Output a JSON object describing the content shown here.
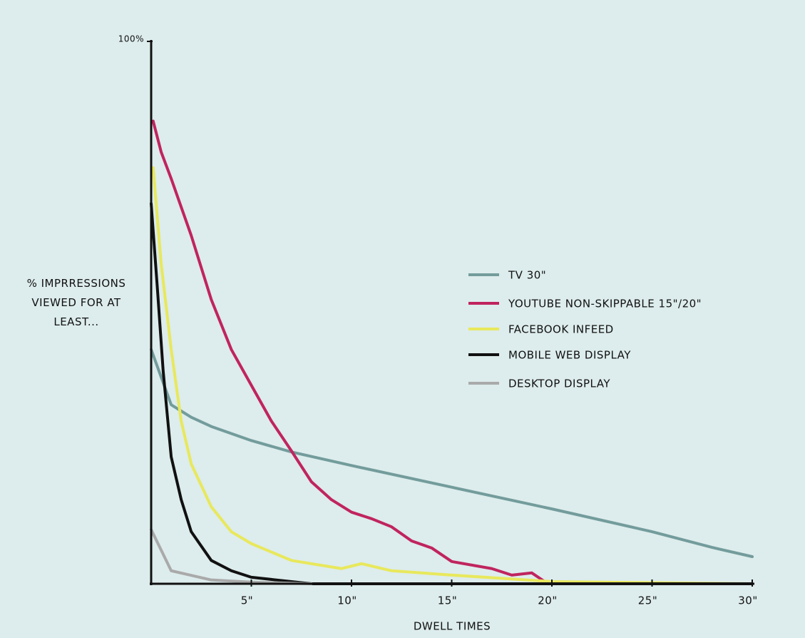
{
  "chart_data": {
    "type": "line",
    "ylabel": "% IMPRRESSIONS VIEWED FOR AT LEAST...",
    "xlabel": "DWELL TIMES",
    "xlim": [
      0,
      30
    ],
    "ylim": [
      0,
      100
    ],
    "xticks": [
      {
        "value": 5,
        "label": "5\""
      },
      {
        "value": 10,
        "label": "10\""
      },
      {
        "value": 15,
        "label": "15\""
      },
      {
        "value": 20,
        "label": "20\""
      },
      {
        "value": 25,
        "label": "25\""
      },
      {
        "value": 30,
        "label": "30\""
      }
    ],
    "yticks": [
      {
        "value": 100,
        "label": "100%"
      }
    ],
    "series": [
      {
        "name": "TV 30\"",
        "color": "#739c9c",
        "x": [
          0,
          1,
          2,
          3,
          5,
          7,
          10,
          15,
          20,
          25,
          28,
          30
        ],
        "values": [
          43.2,
          33,
          30.7,
          29,
          26.4,
          24.3,
          21.8,
          17.8,
          13.8,
          9.6,
          6.7,
          5
        ]
      },
      {
        "name": "YOUTUBE NON-SKIPPABLE 15\"/20\"",
        "color": "#c0245f",
        "x": [
          0.1,
          0.5,
          1,
          2,
          3,
          4,
          5,
          6,
          7,
          8,
          9,
          10,
          11,
          12,
          13,
          14,
          15,
          17,
          18,
          19,
          19.8
        ],
        "values": [
          85.3,
          79.6,
          74.7,
          64.2,
          52.4,
          43.2,
          36.6,
          30,
          24.5,
          18.8,
          15.5,
          13.2,
          12,
          10.5,
          7.9,
          6.6,
          4.1,
          2.8,
          1.6,
          2,
          0
        ]
      },
      {
        "name": "FACEBOOK INFEED",
        "color": "#e8e85c",
        "x": [
          0.1,
          0.5,
          1,
          1.5,
          2,
          3,
          4,
          5,
          7,
          9.5,
          10.5,
          12,
          15,
          20,
          30
        ],
        "values": [
          76.7,
          59,
          43.2,
          30,
          22.1,
          14.2,
          9.6,
          7.4,
          4.3,
          2.8,
          3.7,
          2.4,
          1.6,
          0.4,
          0
        ]
      },
      {
        "name": "MOBILE WEB DISPLAY",
        "color": "#111111",
        "x": [
          0,
          0.3,
          0.6,
          1,
          1.5,
          2,
          3,
          4,
          5,
          8,
          30
        ],
        "values": [
          70.1,
          55,
          39.2,
          23.4,
          15.5,
          9.6,
          4.3,
          2.4,
          1.2,
          0,
          0
        ]
      },
      {
        "name": "DESKTOP DISPLAY",
        "color": "#aaaaaa",
        "x": [
          0,
          1,
          3,
          5,
          8
        ],
        "values": [
          10,
          2.4,
          0.7,
          0.3,
          0
        ]
      }
    ]
  }
}
